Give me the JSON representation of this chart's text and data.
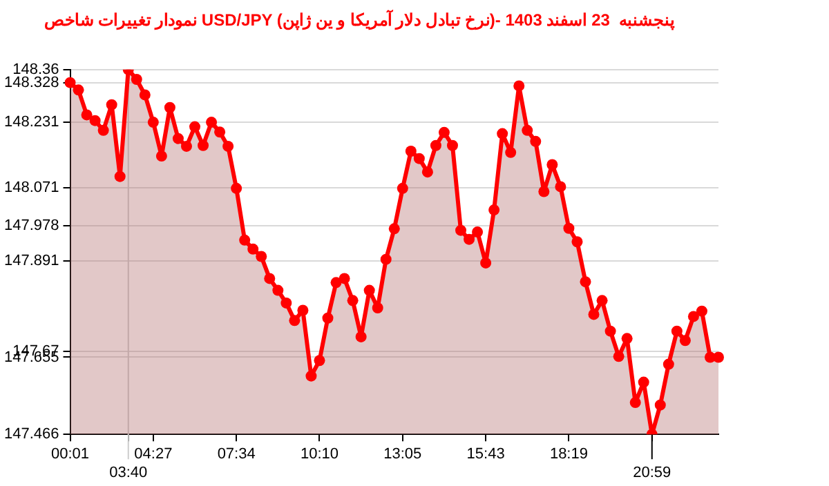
{
  "chart_data": {
    "type": "area",
    "title": "نمودار تغییرات شاخص USD/JPY (نرخ تبادل دلار آمریکا و ین ژاپن)- پنجشنبه  23 اسفند 1403",
    "categories": [
      "00:01",
      null,
      null,
      null,
      null,
      null,
      null,
      "03:40",
      null,
      null,
      "04:27",
      null,
      null,
      null,
      null,
      null,
      null,
      null,
      null,
      null,
      "07:34",
      null,
      null,
      null,
      null,
      null,
      null,
      null,
      null,
      null,
      "10:10",
      null,
      null,
      null,
      null,
      null,
      null,
      null,
      null,
      null,
      "13:05",
      null,
      null,
      null,
      null,
      null,
      null,
      null,
      null,
      null,
      "15:43",
      null,
      null,
      null,
      null,
      null,
      null,
      null,
      null,
      null,
      "18:19",
      null,
      null,
      null,
      null,
      null,
      null,
      null,
      null,
      null,
      "20:59",
      null,
      null,
      null,
      null,
      null,
      null,
      null,
      null
    ],
    "series": [
      {
        "color": "#ff0000",
        "values": [
          148.328,
          148.31,
          148.249,
          148.235,
          148.211,
          148.274,
          148.098,
          148.36,
          148.336,
          148.298,
          148.231,
          148.148,
          148.267,
          148.191,
          148.172,
          148.22,
          148.174,
          148.231,
          148.207,
          148.172,
          148.069,
          147.942,
          147.92,
          147.902,
          147.848,
          147.819,
          147.788,
          147.745,
          147.77,
          147.609,
          147.647,
          147.751,
          147.838,
          147.848,
          147.794,
          147.705,
          147.819,
          147.776,
          147.895,
          147.97,
          148.069,
          148.16,
          148.142,
          148.109,
          148.174,
          148.206,
          148.174,
          147.966,
          147.944,
          147.962,
          147.886,
          148.016,
          148.203,
          148.157,
          148.32,
          148.211,
          148.184,
          148.061,
          148.127,
          148.073,
          147.971,
          147.938,
          147.84,
          147.76,
          147.794,
          147.719,
          147.657,
          147.701,
          147.544,
          147.594,
          147.466,
          147.538,
          147.638,
          147.719,
          147.696,
          147.755,
          147.768,
          147.655,
          147.655
        ]
      }
    ],
    "ylim": [
      147.466,
      148.36
    ],
    "yticks": [
      147.466,
      147.655,
      147.67,
      147.891,
      147.978,
      148.071,
      148.231,
      148.328,
      148.36
    ],
    "grid": "y",
    "marker": "circle",
    "line_style": "solid",
    "legend": false
  }
}
